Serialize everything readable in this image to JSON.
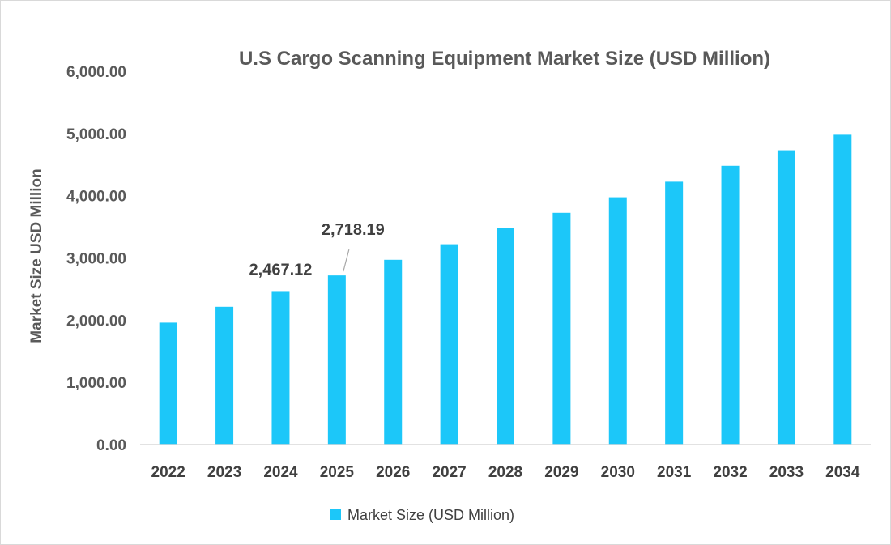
{
  "chart_data": {
    "type": "bar",
    "title": "U.S Cargo Scanning Equipment Market Size (USD Million)",
    "xlabel": "",
    "ylabel": "Market Size USD Million",
    "categories": [
      "2022",
      "2023",
      "2024",
      "2025",
      "2026",
      "2027",
      "2028",
      "2029",
      "2030",
      "2031",
      "2032",
      "2033",
      "2034"
    ],
    "series": [
      {
        "name": "Market Size (USD Million)",
        "color": "#1cc7f9",
        "values": [
          1960,
          2215,
          2467.12,
          2718.19,
          2970,
          3220,
          3475,
          3725,
          3975,
          4225,
          4480,
          4730,
          4980
        ]
      }
    ],
    "ylim": [
      0,
      6000
    ],
    "yticks": [
      "0.00",
      "1,000.00",
      "2,000.00",
      "3,000.00",
      "4,000.00",
      "5,000.00",
      "6,000.00"
    ],
    "data_labels": [
      {
        "category": "2024",
        "text": "2,467.12"
      },
      {
        "category": "2025",
        "text": "2,718.19"
      }
    ],
    "grid": false,
    "legend_position": "bottom"
  }
}
